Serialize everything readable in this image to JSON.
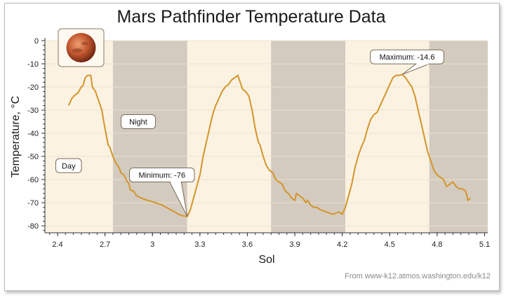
{
  "title": "Mars Pathfinder Temperature Data",
  "source_note": "From www-k12.atmos.washington.edu/k12",
  "icons": {
    "planet": "mars-icon"
  },
  "colors": {
    "line": "#d4952a",
    "day_band": "#fbf2e2",
    "night_band": "#d3cbc0",
    "grid": "#ece2c8"
  },
  "chart_data": {
    "type": "line",
    "title": "Mars Pathfinder Temperature Data",
    "xlabel": "Sol",
    "ylabel": "Temperature, °C",
    "xlim": [
      2.32,
      5.12
    ],
    "ylim": [
      -83,
      0
    ],
    "x_ticks": [
      "2.4",
      "2.7",
      "3",
      "3.3",
      "3.6",
      "3.9",
      "4.2",
      "4.5",
      "4.8",
      "5.1"
    ],
    "y_ticks": [
      "0",
      "-10",
      "-20",
      "-30",
      "-40",
      "-50",
      "-60",
      "-70",
      "-80"
    ],
    "grid": true,
    "bands": [
      {
        "from": 2.32,
        "to": 2.75,
        "label": "Day"
      },
      {
        "from": 2.75,
        "to": 3.22,
        "label": "Night"
      },
      {
        "from": 3.22,
        "to": 3.75,
        "label": "Day"
      },
      {
        "from": 3.75,
        "to": 4.22,
        "label": "Night"
      },
      {
        "from": 4.22,
        "to": 4.75,
        "label": "Day"
      },
      {
        "from": 4.75,
        "to": 5.12,
        "label": "Night"
      }
    ],
    "band_labels": [
      {
        "text": "Day",
        "x": 2.47,
        "y": -54
      },
      {
        "text": "Night",
        "x": 2.91,
        "y": -35
      }
    ],
    "annotations": [
      {
        "text": "Minimum: -76",
        "x": 3.22,
        "y": -76,
        "label_x": 3.06,
        "label_y": -58
      },
      {
        "text": "Maximum: -14.6",
        "x": 4.58,
        "y": -14.6,
        "label_x": 4.61,
        "label_y": -7
      }
    ],
    "series": [
      {
        "values": [
          [
            2.47,
            -28
          ],
          [
            2.49,
            -25
          ],
          [
            2.51,
            -23.5
          ],
          [
            2.53,
            -22.5
          ],
          [
            2.55,
            -20
          ],
          [
            2.56,
            -19.5
          ],
          [
            2.575,
            -16
          ],
          [
            2.59,
            -15
          ],
          [
            2.61,
            -15
          ],
          [
            2.62,
            -20
          ],
          [
            2.64,
            -22
          ],
          [
            2.66,
            -26
          ],
          [
            2.68,
            -30
          ],
          [
            2.7,
            -38
          ],
          [
            2.72,
            -45
          ],
          [
            2.73,
            -46
          ],
          [
            2.75,
            -50
          ],
          [
            2.77,
            -53
          ],
          [
            2.79,
            -55
          ],
          [
            2.8,
            -57
          ],
          [
            2.82,
            -58
          ],
          [
            2.84,
            -61
          ],
          [
            2.85,
            -61.5
          ],
          [
            2.86,
            -64.5
          ],
          [
            2.88,
            -65
          ],
          [
            2.9,
            -67
          ],
          [
            2.93,
            -68
          ],
          [
            2.97,
            -69
          ],
          [
            3.02,
            -70
          ],
          [
            3.06,
            -71
          ],
          [
            3.1,
            -72.5
          ],
          [
            3.14,
            -74
          ],
          [
            3.18,
            -75.5
          ],
          [
            3.22,
            -76
          ],
          [
            3.24,
            -73
          ],
          [
            3.26,
            -68
          ],
          [
            3.28,
            -63
          ],
          [
            3.3,
            -58
          ],
          [
            3.32,
            -50
          ],
          [
            3.34,
            -44
          ],
          [
            3.36,
            -38
          ],
          [
            3.38,
            -32
          ],
          [
            3.4,
            -28
          ],
          [
            3.42,
            -25
          ],
          [
            3.44,
            -22
          ],
          [
            3.46,
            -20
          ],
          [
            3.48,
            -19
          ],
          [
            3.5,
            -17
          ],
          [
            3.52,
            -16
          ],
          [
            3.54,
            -15
          ],
          [
            3.555,
            -18
          ],
          [
            3.57,
            -21
          ],
          [
            3.59,
            -22
          ],
          [
            3.61,
            -24
          ],
          [
            3.63,
            -30
          ],
          [
            3.65,
            -38
          ],
          [
            3.67,
            -44
          ],
          [
            3.68,
            -45
          ],
          [
            3.7,
            -50
          ],
          [
            3.72,
            -54
          ],
          [
            3.74,
            -56
          ],
          [
            3.76,
            -57
          ],
          [
            3.78,
            -60
          ],
          [
            3.8,
            -61
          ],
          [
            3.82,
            -62
          ],
          [
            3.84,
            -65
          ],
          [
            3.86,
            -66
          ],
          [
            3.88,
            -68
          ],
          [
            3.9,
            -69
          ],
          [
            3.91,
            -66
          ],
          [
            3.93,
            -67
          ],
          [
            3.95,
            -68
          ],
          [
            3.97,
            -70
          ],
          [
            3.98,
            -69
          ],
          [
            4.0,
            -71
          ],
          [
            4.02,
            -72
          ],
          [
            4.04,
            -72
          ],
          [
            4.06,
            -73
          ],
          [
            4.08,
            -73.5
          ],
          [
            4.1,
            -74
          ],
          [
            4.12,
            -74.5
          ],
          [
            4.14,
            -75
          ],
          [
            4.16,
            -74.5
          ],
          [
            4.18,
            -74
          ],
          [
            4.2,
            -75
          ],
          [
            4.22,
            -72
          ],
          [
            4.24,
            -67
          ],
          [
            4.26,
            -62
          ],
          [
            4.28,
            -55
          ],
          [
            4.3,
            -50
          ],
          [
            4.32,
            -46
          ],
          [
            4.34,
            -43
          ],
          [
            4.36,
            -38
          ],
          [
            4.38,
            -34
          ],
          [
            4.4,
            -32
          ],
          [
            4.42,
            -31
          ],
          [
            4.44,
            -28
          ],
          [
            4.46,
            -25
          ],
          [
            4.48,
            -22
          ],
          [
            4.5,
            -19
          ],
          [
            4.52,
            -16
          ],
          [
            4.54,
            -15
          ],
          [
            4.56,
            -15
          ],
          [
            4.58,
            -14.6
          ],
          [
            4.6,
            -16
          ],
          [
            4.62,
            -18
          ],
          [
            4.64,
            -20
          ],
          [
            4.66,
            -24
          ],
          [
            4.68,
            -30
          ],
          [
            4.7,
            -36
          ],
          [
            4.72,
            -42
          ],
          [
            4.74,
            -48
          ],
          [
            4.76,
            -52
          ],
          [
            4.78,
            -56
          ],
          [
            4.8,
            -58
          ],
          [
            4.82,
            -59
          ],
          [
            4.84,
            -60
          ],
          [
            4.86,
            -63
          ],
          [
            4.88,
            -62
          ],
          [
            4.9,
            -61
          ],
          [
            4.92,
            -63
          ],
          [
            4.94,
            -64
          ],
          [
            4.96,
            -64
          ],
          [
            4.98,
            -65
          ],
          [
            4.995,
            -69
          ],
          [
            5.01,
            -68
          ]
        ]
      }
    ]
  }
}
